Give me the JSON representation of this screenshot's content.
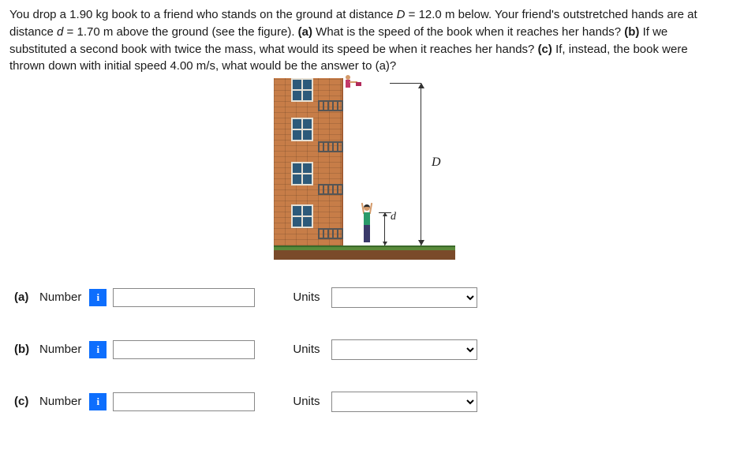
{
  "question": {
    "prefix": "You drop a 1.90 kg book to a friend who stands on the ground at distance ",
    "Dvar": "D",
    "Deq": " = 12.0 m below. Your friend's outstretched hands are at distance ",
    "dvar": "d",
    "deq": " = 1.70 m above the ground (see the figure). ",
    "pa_lbl": "(a)",
    "pa_txt": " What is the speed of the book when it reaches her hands? ",
    "pb_lbl": "(b)",
    "pb_txt": " If we substituted a second book with twice the mass, what would its speed be when it reaches her hands? ",
    "pc_lbl": "(c)",
    "pc_txt": " If, instead, the book were thrown down with initial speed 4.00 m/s, what would be the answer to (a)?"
  },
  "figure": {
    "D_label": "D",
    "d_label": "d"
  },
  "labels": {
    "number": "Number",
    "units": "Units",
    "info": "i"
  },
  "answers": {
    "a": {
      "part": "(a)",
      "value": "",
      "units": ""
    },
    "b": {
      "part": "(b)",
      "value": "",
      "units": ""
    },
    "c": {
      "part": "(c)",
      "value": "",
      "units": ""
    }
  }
}
